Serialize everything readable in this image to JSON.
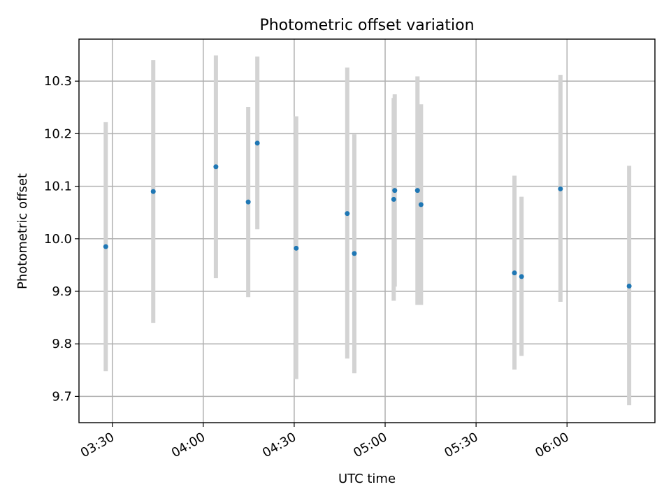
{
  "chart_data": {
    "type": "scatter",
    "title": "Photometric offset variation",
    "xlabel": "UTC time",
    "ylabel": "Photometric offset",
    "xlim": [
      "03:19",
      "06:29"
    ],
    "ylim": [
      9.65,
      10.38
    ],
    "x_ticks": [
      "03:30",
      "04:00",
      "04:30",
      "05:00",
      "05:30",
      "06:00"
    ],
    "y_ticks": [
      "9.7",
      "9.8",
      "9.9",
      "10.0",
      "10.1",
      "10.2",
      "10.3"
    ],
    "grid": true,
    "points": [
      {
        "time": "03:27:50",
        "y": 9.985,
        "low": 9.748,
        "high": 10.222
      },
      {
        "time": "03:43:30",
        "y": 10.09,
        "low": 9.84,
        "high": 10.34
      },
      {
        "time": "04:04:10",
        "y": 10.137,
        "low": 9.925,
        "high": 10.349
      },
      {
        "time": "04:14:50",
        "y": 10.07,
        "low": 9.889,
        "high": 10.251
      },
      {
        "time": "04:17:50",
        "y": 10.182,
        "low": 10.018,
        "high": 10.347
      },
      {
        "time": "04:30:40",
        "y": 9.982,
        "low": 9.733,
        "high": 10.233
      },
      {
        "time": "04:47:30",
        "y": 10.048,
        "low": 9.772,
        "high": 10.326
      },
      {
        "time": "04:49:50",
        "y": 9.972,
        "low": 9.744,
        "high": 10.199
      },
      {
        "time": "05:02:50",
        "y": 10.075,
        "low": 9.882,
        "high": 10.268
      },
      {
        "time": "05:03:10",
        "y": 10.092,
        "low": 9.909,
        "high": 10.275
      },
      {
        "time": "05:10:40",
        "y": 10.092,
        "low": 9.874,
        "high": 10.309
      },
      {
        "time": "05:11:50",
        "y": 10.065,
        "low": 9.874,
        "high": 10.256
      },
      {
        "time": "05:42:40",
        "y": 9.935,
        "low": 9.751,
        "high": 10.12
      },
      {
        "time": "05:45:00",
        "y": 9.928,
        "low": 9.777,
        "high": 10.08
      },
      {
        "time": "05:57:50",
        "y": 10.095,
        "low": 9.88,
        "high": 10.312
      },
      {
        "time": "06:20:30",
        "y": 9.91,
        "low": 9.683,
        "high": 10.139
      }
    ]
  },
  "colors": {
    "point": "#1f77b4",
    "error_bar": "#d3d3d3",
    "grid": "#b0b0b0"
  }
}
